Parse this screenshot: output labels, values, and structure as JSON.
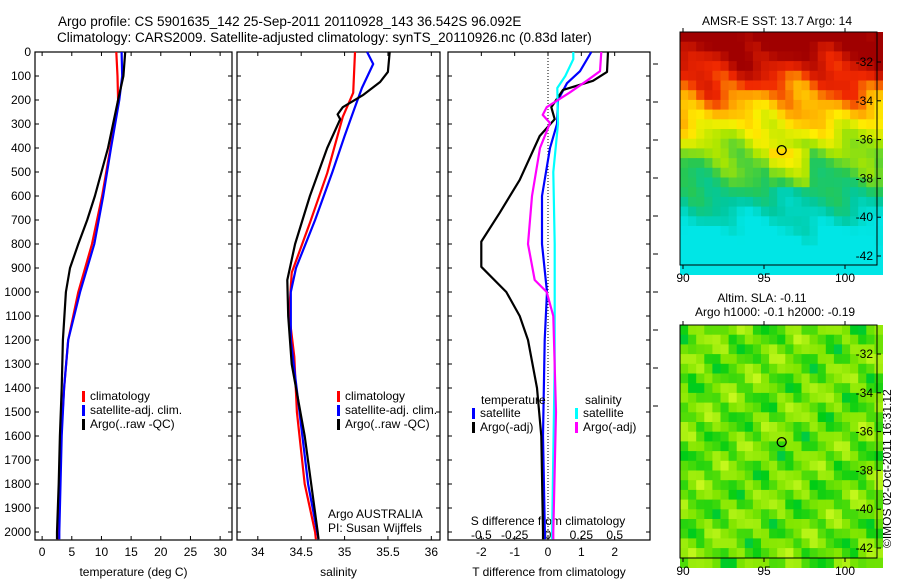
{
  "header": {
    "line1": "Argo profile: CS 5901635_142 25-Sep-2011 20110928_143 36.542S 96.092E",
    "line2": "Climatology: CARS2009. Satellite-adjusted climatology: synTS_20110926.nc (0.83d later)"
  },
  "credit": "©IMOS 02-Oct-2011 16:31:12",
  "colors": {
    "climatology": "#ff0000",
    "satellite": "#0000ff",
    "argo": "#000000",
    "sal_satellite": "#00ffff",
    "sal_argo": "#ff00ff"
  },
  "chart_data": [
    {
      "type": "line",
      "xlabel": "temperature (deg C)",
      "ylabel": "depth",
      "xlim": [
        -1.2,
        32
      ],
      "ylim": [
        2033,
        0
      ],
      "xtick_labels": [
        "0",
        "5",
        "10",
        "15",
        "20",
        "25",
        "30"
      ],
      "xticks": [
        0,
        5,
        10,
        15,
        20,
        25,
        30
      ],
      "ytick_labels": [
        "0",
        "100",
        "200",
        "300",
        "400",
        "500",
        "600",
        "700",
        "800",
        "900",
        "1000",
        "1100",
        "1200",
        "1300",
        "1400",
        "1500",
        "1600",
        "1700",
        "1800",
        "1900",
        "2000"
      ],
      "legend": [
        "climatology",
        "satellite-adj. clim.",
        "Argo(..raw -QC)"
      ],
      "series": [
        {
          "name": "climatology",
          "color": "#ff0000",
          "depth": [
            0,
            100,
            200,
            400,
            600,
            800,
            1000,
            1200,
            1400,
            1600,
            1800,
            2000,
            2030
          ],
          "values": [
            12.5,
            12.7,
            12.8,
            11.5,
            10.1,
            8.4,
            6.1,
            4.4,
            3.7,
            3.2,
            3.0,
            2.7,
            2.7
          ]
        },
        {
          "name": "satellite-adj. clim.",
          "color": "#0000ff",
          "depth": [
            0,
            100,
            200,
            400,
            600,
            800,
            1000,
            1200,
            1400,
            1600,
            1800,
            2000,
            2030
          ],
          "values": [
            13.4,
            13.5,
            13.0,
            11.6,
            10.3,
            8.8,
            6.4,
            4.4,
            3.7,
            3.3,
            3.1,
            2.9,
            2.9
          ]
        },
        {
          "name": "Argo(..raw -QC)",
          "color": "#000000",
          "depth": [
            0,
            100,
            200,
            400,
            600,
            700,
            800,
            900,
            1000,
            1200,
            1400,
            1600,
            1800,
            2000,
            2030
          ],
          "values": [
            14.0,
            13.7,
            12.8,
            11.1,
            8.9,
            7.6,
            6.1,
            4.7,
            4.0,
            3.5,
            3.3,
            3.0,
            2.8,
            2.5,
            2.5
          ]
        }
      ]
    },
    {
      "type": "line",
      "xlabel": "salinity",
      "xlim": [
        33.76,
        36.1
      ],
      "ylim": [
        2033,
        0
      ],
      "xtick_labels": [
        "34",
        "34.5",
        "35",
        "35.5",
        "36"
      ],
      "xticks": [
        34,
        34.5,
        35,
        35.5,
        36
      ],
      "legend": [
        "climatology",
        "satellite-adj. clim.",
        "Argo(..raw -QC)"
      ],
      "annotation": [
        "Argo AUSTRALIA",
        "PI: Susan Wijffels"
      ],
      "series": [
        {
          "name": "climatology",
          "color": "#ff0000",
          "depth": [
            0,
            170,
            270,
            505,
            712,
            920,
            1090,
            1270,
            1500,
            1800,
            2000,
            2030
          ],
          "values": [
            35.12,
            35.1,
            34.98,
            34.8,
            34.6,
            34.39,
            34.36,
            34.42,
            34.45,
            34.54,
            34.66,
            34.67
          ]
        },
        {
          "name": "satellite-adj. clim.",
          "color": "#0000ff",
          "depth": [
            0,
            50,
            150,
            250,
            350,
            500,
            700,
            900,
            1000,
            1200,
            1500,
            1800,
            2030
          ],
          "values": [
            35.26,
            35.33,
            35.2,
            35.1,
            35.0,
            34.86,
            34.66,
            34.44,
            34.38,
            34.38,
            34.48,
            34.58,
            34.7
          ]
        },
        {
          "name": "Argo(..raw -QC)",
          "color": "#000000",
          "depth": [
            0,
            83,
            125,
            180,
            230,
            260,
            280,
            400,
            600,
            800,
            950,
            1100,
            1300,
            1600,
            2000,
            2030
          ],
          "values": [
            35.52,
            35.5,
            35.41,
            35.21,
            34.98,
            34.92,
            34.95,
            34.8,
            34.6,
            34.43,
            34.34,
            34.35,
            34.39,
            34.54,
            34.69,
            34.7
          ]
        }
      ]
    },
    {
      "type": "line",
      "xlabel": "T difference from climatology",
      "x2label": "S difference from climatology",
      "xlim": [
        -3,
        3.06
      ],
      "ylim": [
        2033,
        0
      ],
      "xtick_labels": [
        "-2",
        "-1",
        "0",
        "1",
        "2"
      ],
      "xticks": [
        -2,
        -1,
        0,
        1,
        2
      ],
      "x2tick_labels": [
        "-0.5",
        "-0.25",
        "0",
        "0.25",
        "0.5"
      ],
      "x2ticks": [
        -0.5,
        -0.25,
        0,
        0.25,
        0.5
      ],
      "legend_headers": [
        "temperature",
        "salinity"
      ],
      "legend": [
        "satellite",
        "Argo(-adj)",
        "satellite",
        "Argo(-adj)"
      ],
      "series": [
        {
          "name": "temperature satellite",
          "axis": "T",
          "color": "#0000ff",
          "depth": [
            0,
            80,
            130,
            200,
            300,
            400,
            600,
            800,
            1000,
            1200,
            1600,
            2030
          ],
          "values": [
            1.3,
            0.96,
            0.57,
            0.3,
            0.27,
            0.06,
            -0.18,
            -0.18,
            -0.03,
            -0.1,
            -0.15,
            -0.09
          ]
        },
        {
          "name": "temperature Argo(-adj)",
          "axis": "T",
          "color": "#000000",
          "depth": [
            0,
            83,
            120,
            158,
            230,
            280,
            350,
            533,
            670,
            790,
            895,
            1000,
            1100,
            1200,
            1400,
            1600,
            2000,
            2030
          ],
          "values": [
            1.8,
            1.77,
            1.35,
            0.45,
            0.1,
            0.2,
            -0.25,
            -0.85,
            -1.45,
            -2.0,
            -2.0,
            -1.25,
            -0.85,
            -0.6,
            -0.33,
            -0.2,
            -0.15,
            -0.15
          ]
        },
        {
          "name": "salinity satellite",
          "axis": "S",
          "color": "#00ffff",
          "depth": [
            0,
            30,
            100,
            150,
            300,
            500,
            800,
            1000,
            1300,
            2030
          ],
          "values": [
            0.19,
            0.19,
            0.13,
            0.07,
            0.075,
            0.04,
            0.05,
            0.05,
            0.05,
            0.03
          ]
        },
        {
          "name": "salinity Argo(-adj)",
          "axis": "S",
          "color": "#ff00ff",
          "depth": [
            0,
            80,
            120,
            170,
            230,
            262,
            296,
            400,
            600,
            800,
            950,
            1000,
            1100,
            1500,
            2000,
            2030
          ],
          "values": [
            0.4,
            0.39,
            0.29,
            0.16,
            -0.01,
            -0.04,
            0.015,
            -0.06,
            -0.12,
            -0.15,
            -0.1,
            -0.01,
            0.04,
            0.06,
            0.04,
            0.04
          ]
        }
      ]
    },
    {
      "type": "heatmap",
      "title": "AMSR-E SST: 13.7 Argo: 14",
      "xtick_labels": [
        "90",
        "95",
        "100"
      ],
      "xticks": [
        90,
        95,
        100
      ],
      "ytick_labels": [
        "-32",
        "-34",
        "-36",
        "-38",
        "-40",
        "-42"
      ],
      "yticks": [
        -32,
        -34,
        -36,
        -38,
        -40,
        -42
      ],
      "marker": {
        "lon": 96.092,
        "lat": -36.542
      }
    },
    {
      "type": "heatmap",
      "title": "Altim. SLA: -0.11",
      "subtitle": "Argo h1000: -0.1 h2000: -0.19",
      "xtick_labels": [
        "90",
        "95",
        "100"
      ],
      "xticks": [
        90,
        95,
        100
      ],
      "ytick_labels": [
        "-32",
        "-34",
        "-36",
        "-38",
        "-40",
        "-42"
      ],
      "yticks": [
        -32,
        -34,
        -36,
        -38,
        -40,
        -42
      ],
      "marker": {
        "lon": 96.092,
        "lat": -36.542
      }
    }
  ]
}
